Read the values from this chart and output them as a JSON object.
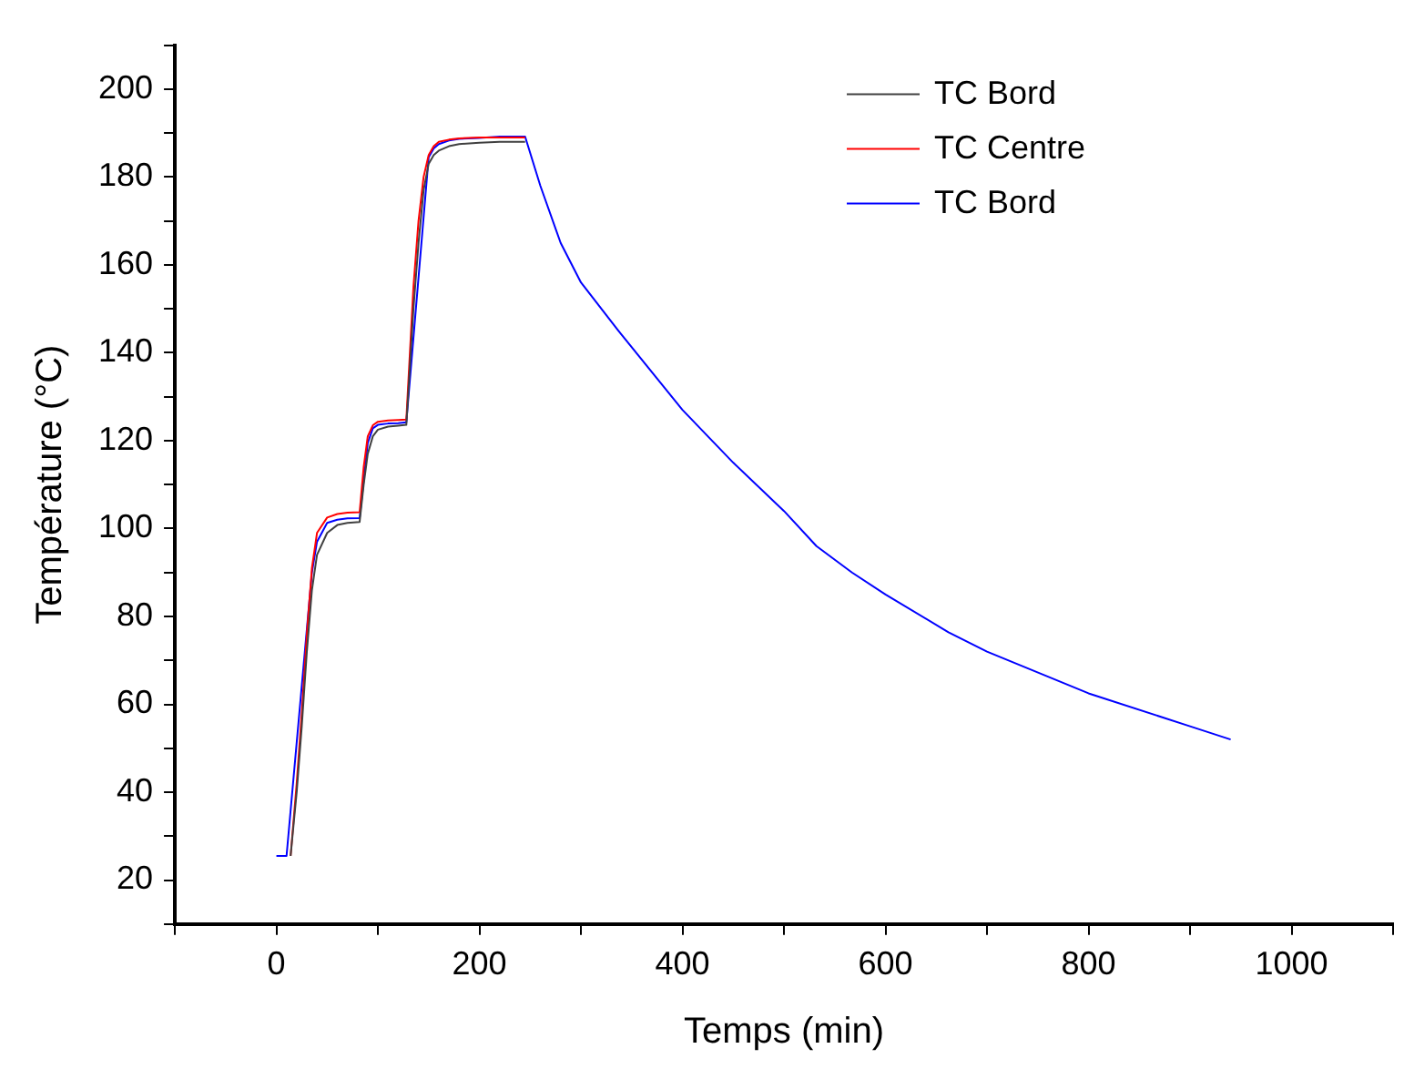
{
  "chart_data": {
    "type": "line",
    "xlabel": "Temps (min)",
    "ylabel": "Température (°C)",
    "x": [
      0,
      10,
      14,
      20,
      25,
      30,
      35,
      40,
      50,
      60,
      70,
      82,
      86,
      90,
      95,
      100,
      110,
      120,
      128,
      135,
      140,
      145,
      150,
      155,
      160,
      170,
      180,
      200,
      220,
      240,
      245,
      260,
      280,
      300,
      337,
      400,
      450,
      500,
      532,
      567,
      600,
      662,
      700,
      800,
      900,
      940
    ],
    "series": [
      {
        "name": "TC Bord",
        "color": "#404040",
        "values": [
          null,
          null,
          25.5,
          40,
          55,
          72,
          86,
          94,
          99,
          100.8,
          101.3,
          101.5,
          110,
          117,
          121,
          122.5,
          123.2,
          123.4,
          123.6,
          150,
          165,
          177,
          183,
          185,
          186,
          187,
          187.5,
          187.8,
          188,
          188,
          188,
          null,
          null,
          null,
          null,
          null,
          null,
          null,
          null,
          null,
          null,
          null,
          null,
          null,
          null,
          null
        ]
      },
      {
        "name": "TC Centre",
        "color": "#ff0000",
        "values": [
          null,
          null,
          25.5,
          42,
          58,
          76,
          91,
          99,
          102.5,
          103.3,
          103.6,
          103.7,
          114,
          121,
          123.5,
          124.3,
          124.6,
          124.7,
          124.8,
          155,
          170,
          180,
          185,
          187,
          188,
          188.5,
          188.8,
          189,
          189,
          189,
          189,
          null,
          null,
          null,
          null,
          null,
          null,
          null,
          null,
          null,
          null,
          null,
          null,
          null,
          null,
          null
        ]
      },
      {
        "name": "TC Bord",
        "color": "#0000ff",
        "values": [
          25.5,
          25.5,
          null,
          null,
          null,
          null,
          90,
          97,
          101.3,
          102,
          102.3,
          102.4,
          null,
          119.5,
          122.8,
          123.6,
          123.9,
          124,
          124.2,
          null,
          null,
          null,
          184.5,
          186.5,
          187.5,
          188.3,
          188.7,
          188.9,
          189.2,
          189.2,
          189.2,
          178,
          165,
          156,
          145,
          127,
          115,
          104,
          96,
          90,
          85,
          76.4,
          72,
          62.5,
          55,
          52
        ]
      }
    ],
    "xlim": [
      -100,
      1100
    ],
    "xticks": [
      {
        "value": -100,
        "label": null
      },
      0,
      {
        "value": 100,
        "label": null
      },
      200,
      {
        "value": 300,
        "label": null
      },
      400,
      {
        "value": 500,
        "label": null
      },
      600,
      {
        "value": 700,
        "label": null
      },
      800,
      {
        "value": 900,
        "label": null
      },
      1000,
      {
        "value": 1100,
        "label": null
      }
    ],
    "ylim": [
      10,
      210
    ],
    "yticks": [
      {
        "value": 10,
        "label": null
      },
      20,
      {
        "value": 30,
        "label": null
      },
      40,
      {
        "value": 50,
        "label": null
      },
      60,
      {
        "value": 70,
        "label": null
      },
      80,
      {
        "value": 90,
        "label": null
      },
      100,
      {
        "value": 110,
        "label": null
      },
      120,
      {
        "value": 130,
        "label": null
      },
      140,
      {
        "value": 150,
        "label": null
      },
      160,
      {
        "value": 170,
        "label": null
      },
      180,
      {
        "value": 190,
        "label": null
      },
      200,
      {
        "value": 210,
        "label": null
      }
    ],
    "grid": false,
    "legend": "top right",
    "marker": "none",
    "line_style": "solid"
  }
}
